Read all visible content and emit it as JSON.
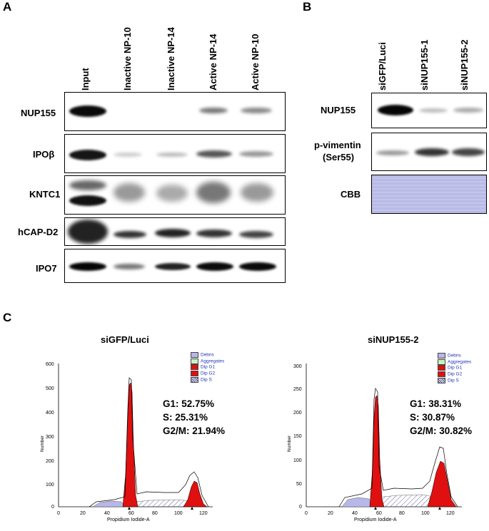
{
  "panel_a": {
    "letter": "A",
    "lanes": [
      "Input",
      "Inactive NP-10",
      "Inactive NP-14",
      "Active NP-14",
      "Active NP-10"
    ],
    "rows": [
      "NUP155",
      "IPOβ",
      "KNTC1",
      "hCAP-D2",
      "IPO7"
    ]
  },
  "panel_b": {
    "letter": "B",
    "lanes": [
      "siGFP/Luci",
      "siNUP155-1",
      "siNUP155-2"
    ],
    "rows": [
      "NUP155",
      "p-vimentin",
      "(Ser55)",
      "CBB"
    ]
  },
  "panel_c": {
    "letter": "C",
    "legend": [
      "Debris",
      "Aggregates",
      "Dip G1",
      "Dip G2",
      "Dip S"
    ],
    "colors": {
      "debris": "#b7b7e8",
      "aggregates": "#c9f2c2",
      "g1": "#e01010",
      "g2": "#e01010",
      "s_hatch": "#3a3a8a"
    },
    "ylabel": "Number",
    "xlabel": "Propidium Iodide-A",
    "histograms": [
      {
        "title": "siGFP/Luci",
        "stats": [
          "G1: 52.75%",
          "S: 25.31%",
          "G2/M: 21.94%"
        ],
        "yticks": [
          "600",
          "500",
          "400",
          "300",
          "200",
          "100",
          "0"
        ],
        "xticks": [
          "0",
          "20",
          "40",
          "60",
          "80",
          "100",
          "120"
        ]
      },
      {
        "title": "siNUP155-2",
        "stats": [
          "G1: 38.31%",
          "S: 30.87%",
          "G2/M: 30.82%"
        ],
        "yticks": [
          "300",
          "250",
          "200",
          "150",
          "100",
          "50",
          "0"
        ],
        "xticks": [
          "0",
          "20",
          "40",
          "60",
          "80",
          "100",
          "120"
        ]
      }
    ]
  }
}
